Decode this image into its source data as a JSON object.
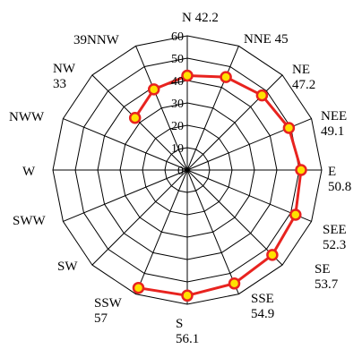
{
  "chart_data": {
    "type": "radar",
    "title": "",
    "r_range": [
      0,
      60
    ],
    "r_ticks": [
      "0",
      "10",
      "20",
      "30",
      "40",
      "50",
      "60"
    ],
    "directions": [
      "N",
      "NNE",
      "NE",
      "NEE",
      "E",
      "SEE",
      "SE",
      "SSE",
      "S",
      "SSW",
      "SW",
      "SWW",
      "W",
      "NWW",
      "NW",
      "NNW"
    ],
    "series": [
      {
        "color": "#e8231f",
        "marker_color": "#ffe100",
        "values": [
          42.2,
          45,
          47.2,
          49.1,
          50.8,
          52.3,
          53.7,
          54.9,
          56.1,
          57,
          null,
          null,
          null,
          null,
          33,
          39
        ]
      }
    ],
    "label_lines": [
      [
        "N 42.2"
      ],
      [
        "NNE 45"
      ],
      [
        "NE",
        "47.2"
      ],
      [
        "NEE",
        "49.1"
      ],
      [
        "E",
        "50.8"
      ],
      [
        "SEE",
        "52.3"
      ],
      [
        "SE",
        "53.7"
      ],
      [
        "SSE",
        "54.9"
      ],
      [
        "S",
        "56.1"
      ],
      [
        "SSW",
        "57"
      ],
      [
        "SW"
      ],
      [
        "SWW"
      ],
      [
        "W"
      ],
      [
        "NWW"
      ],
      [
        "NW",
        "33"
      ],
      [
        "39NNW"
      ]
    ],
    "grid": true
  }
}
